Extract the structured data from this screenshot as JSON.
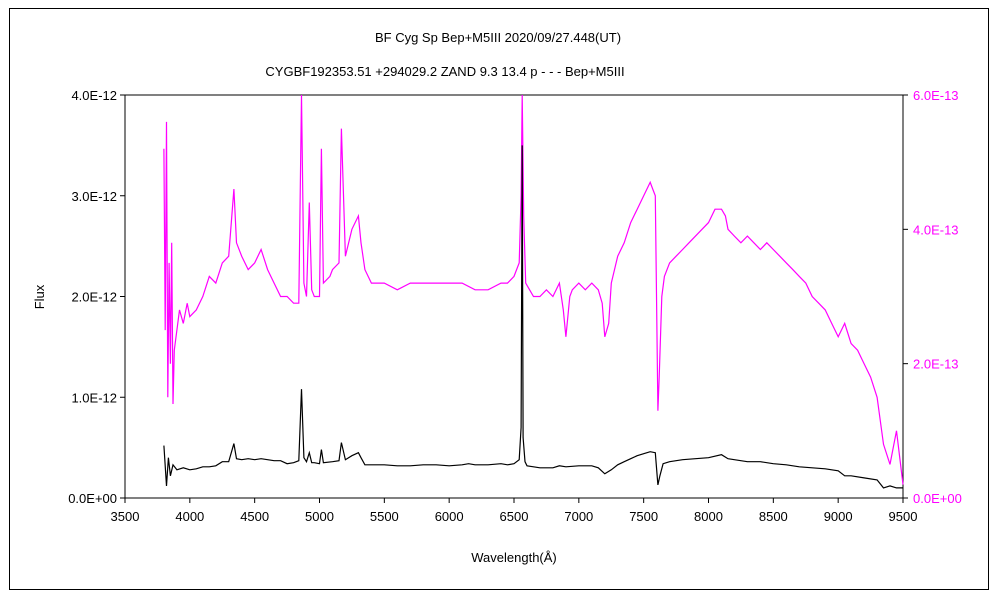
{
  "chart_data": {
    "type": "line",
    "title": "BF Cyg    Sp Bep+M5III    2020/09/27.448(UT)",
    "subtitle": "CYGBF192353.51 +294029.2 ZAND 9.3 13.4 p - - - Bep+M5III",
    "xlabel": "Wavelength(Å)",
    "ylabel": "Flux",
    "xlim": [
      3500,
      9500
    ],
    "ylim_left": [
      0,
      4e-12
    ],
    "ylim_right": [
      0,
      6e-13
    ],
    "x_ticks": [
      "3500",
      "4000",
      "4500",
      "5000",
      "5500",
      "6000",
      "6500",
      "7000",
      "7500",
      "8000",
      "8500",
      "9000",
      "9500"
    ],
    "y_ticks_left": [
      "0.0E+00",
      "1.0E-12",
      "2.0E-12",
      "3.0E-12",
      "4.0E-12"
    ],
    "y_ticks_right": [
      "0.0E+00",
      "2.0E-13",
      "4.0E-13",
      "6.0E-13"
    ],
    "grid": false,
    "series": [
      {
        "axis": "left",
        "color": "#000000",
        "x": [
          3800,
          3820,
          3835,
          3850,
          3870,
          3900,
          3950,
          4000,
          4050,
          4100,
          4150,
          4200,
          4250,
          4300,
          4340,
          4360,
          4400,
          4450,
          4500,
          4550,
          4600,
          4650,
          4700,
          4750,
          4800,
          4840,
          4861,
          4880,
          4900,
          4921,
          4940,
          4960,
          5000,
          5015,
          5030,
          5100,
          5150,
          5169,
          5200,
          5250,
          5300,
          5320,
          5350,
          5400,
          5500,
          5600,
          5700,
          5800,
          5900,
          6000,
          6100,
          6150,
          6200,
          6300,
          6400,
          6450,
          6500,
          6540,
          6555,
          6563,
          6570,
          6585,
          6600,
          6650,
          6700,
          6800,
          6850,
          6900,
          7000,
          7050,
          7100,
          7150,
          7200,
          7250,
          7300,
          7350,
          7400,
          7450,
          7500,
          7550,
          7590,
          7610,
          7625,
          7650,
          7700,
          7800,
          7900,
          8000,
          8100,
          8150,
          8200,
          8300,
          8400,
          8500,
          8600,
          8700,
          8800,
          8900,
          9000,
          9050,
          9100,
          9200,
          9300,
          9350,
          9400,
          9450,
          9500
        ],
        "y": [
          5.2e-13,
          1.2e-13,
          4e-13,
          2.2e-13,
          3.3e-13,
          2.8e-13,
          3e-13,
          2.8e-13,
          2.9e-13,
          3.1e-13,
          3.1e-13,
          3.2e-13,
          3.6e-13,
          3.6e-13,
          5.4e-13,
          3.9e-13,
          3.8e-13,
          3.9e-13,
          3.8e-13,
          3.9e-13,
          3.8e-13,
          3.7e-13,
          3.7e-13,
          3.4e-13,
          3.5e-13,
          3.7e-13,
          1.08e-12,
          4e-13,
          3.6e-13,
          4.5e-13,
          3.5e-13,
          3.5e-13,
          3.4e-13,
          4.8e-13,
          3.5e-13,
          3.6e-13,
          3.7e-13,
          5.5e-13,
          3.8e-13,
          4.2e-13,
          4.5e-13,
          4e-13,
          3.3e-13,
          3.3e-13,
          3.3e-13,
          3.2e-13,
          3.2e-13,
          3.3e-13,
          3.3e-13,
          3.2e-13,
          3.3e-13,
          3.4e-13,
          3.3e-13,
          3.3e-13,
          3.4e-13,
          3.3e-13,
          3.4e-13,
          3.8e-13,
          7e-13,
          3.5e-12,
          6e-13,
          3.6e-13,
          3.2e-13,
          3.1e-13,
          3e-13,
          3e-13,
          3.2e-13,
          3.1e-13,
          3.2e-13,
          3.2e-13,
          3.2e-13,
          3e-13,
          2.4e-13,
          2.8e-13,
          3.3e-13,
          3.6e-13,
          3.9e-13,
          4.2e-13,
          4.4e-13,
          4.6e-13,
          4.5e-13,
          1.3e-13,
          2.2e-13,
          3.4e-13,
          3.6e-13,
          3.8e-13,
          3.9e-13,
          4e-13,
          4.3e-13,
          3.9e-13,
          3.8e-13,
          3.6e-13,
          3.6e-13,
          3.4e-13,
          3.3e-13,
          3.1e-13,
          3e-13,
          2.9e-13,
          2.7e-13,
          2.2e-13,
          2.2e-13,
          2e-13,
          1.8e-13,
          1e-13,
          1.2e-13,
          1e-13,
          1e-13
        ]
      },
      {
        "axis": "right",
        "color": "#ff00ff",
        "x": [
          3800,
          3810,
          3820,
          3830,
          3840,
          3850,
          3860,
          3870,
          3880,
          3900,
          3920,
          3950,
          3980,
          4000,
          4050,
          4100,
          4150,
          4200,
          4250,
          4300,
          4340,
          4360,
          4400,
          4450,
          4500,
          4550,
          4600,
          4650,
          4700,
          4750,
          4800,
          4840,
          4861,
          4880,
          4900,
          4921,
          4940,
          4960,
          5000,
          5015,
          5030,
          5080,
          5100,
          5150,
          5169,
          5200,
          5250,
          5300,
          5320,
          5350,
          5400,
          5500,
          5600,
          5700,
          5800,
          5900,
          6000,
          6100,
          6200,
          6300,
          6400,
          6450,
          6500,
          6540,
          6555,
          6563,
          6575,
          6590,
          6620,
          6650,
          6700,
          6750,
          6800,
          6850,
          6880,
          6900,
          6930,
          6950,
          7000,
          7050,
          7100,
          7150,
          7180,
          7200,
          7230,
          7250,
          7300,
          7350,
          7400,
          7450,
          7500,
          7550,
          7570,
          7590,
          7610,
          7620,
          7640,
          7660,
          7700,
          7750,
          7800,
          7850,
          7900,
          7950,
          8000,
          8050,
          8100,
          8130,
          8150,
          8200,
          8250,
          8300,
          8350,
          8400,
          8450,
          8500,
          8550,
          8600,
          8650,
          8700,
          8750,
          8800,
          8850,
          8900,
          8950,
          9000,
          9050,
          9100,
          9150,
          9200,
          9250,
          9300,
          9350,
          9400,
          9450,
          9500
        ],
        "y": [
          5.2e-13,
          2.5e-13,
          5.6e-13,
          1.5e-13,
          3.5e-13,
          2e-13,
          3.8e-13,
          1.4e-13,
          2.2e-13,
          2.5e-13,
          2.8e-13,
          2.6e-13,
          2.9e-13,
          2.7e-13,
          2.8e-13,
          3e-13,
          3.3e-13,
          3.2e-13,
          3.5e-13,
          3.6e-13,
          4.6e-13,
          3.8e-13,
          3.6e-13,
          3.4e-13,
          3.5e-13,
          3.7e-13,
          3.4e-13,
          3.2e-13,
          3e-13,
          3e-13,
          2.9e-13,
          2.9e-13,
          6e-13,
          3.2e-13,
          3e-13,
          4.4e-13,
          3.1e-13,
          3e-13,
          3e-13,
          5.2e-13,
          3.2e-13,
          3.3e-13,
          3.4e-13,
          3.5e-13,
          5.5e-13,
          3.6e-13,
          4e-13,
          4.2e-13,
          3.8e-13,
          3.4e-13,
          3.2e-13,
          3.2e-13,
          3.1e-13,
          3.2e-13,
          3.2e-13,
          3.2e-13,
          3.2e-13,
          3.2e-13,
          3.1e-13,
          3.1e-13,
          3.2e-13,
          3.2e-13,
          3.3e-13,
          3.5e-13,
          4.5e-13,
          6e-13,
          4.2e-13,
          3.2e-13,
          3.1e-13,
          3e-13,
          3e-13,
          3.1e-13,
          3e-13,
          3.2e-13,
          2.8e-13,
          2.4e-13,
          3e-13,
          3.1e-13,
          3.2e-13,
          3.1e-13,
          3.2e-13,
          3.1e-13,
          2.9e-13,
          2.4e-13,
          2.6e-13,
          3.2e-13,
          3.6e-13,
          3.8e-13,
          4.1e-13,
          4.3e-13,
          4.5e-13,
          4.7e-13,
          4.6e-13,
          4.5e-13,
          1.3e-13,
          1.8e-13,
          3e-13,
          3.3e-13,
          3.5e-13,
          3.6e-13,
          3.7e-13,
          3.8e-13,
          3.9e-13,
          4e-13,
          4.1e-13,
          4.3e-13,
          4.3e-13,
          4.2e-13,
          4e-13,
          3.9e-13,
          3.8e-13,
          3.9e-13,
          3.8e-13,
          3.7e-13,
          3.8e-13,
          3.7e-13,
          3.6e-13,
          3.5e-13,
          3.4e-13,
          3.3e-13,
          3.2e-13,
          3e-13,
          2.9e-13,
          2.8e-13,
          2.6e-13,
          2.4e-13,
          2.6e-13,
          2.3e-13,
          2.2e-13,
          2e-13,
          1.8e-13,
          1.5e-13,
          8e-14,
          5e-14,
          1e-13,
          2e-14
        ]
      }
    ]
  }
}
